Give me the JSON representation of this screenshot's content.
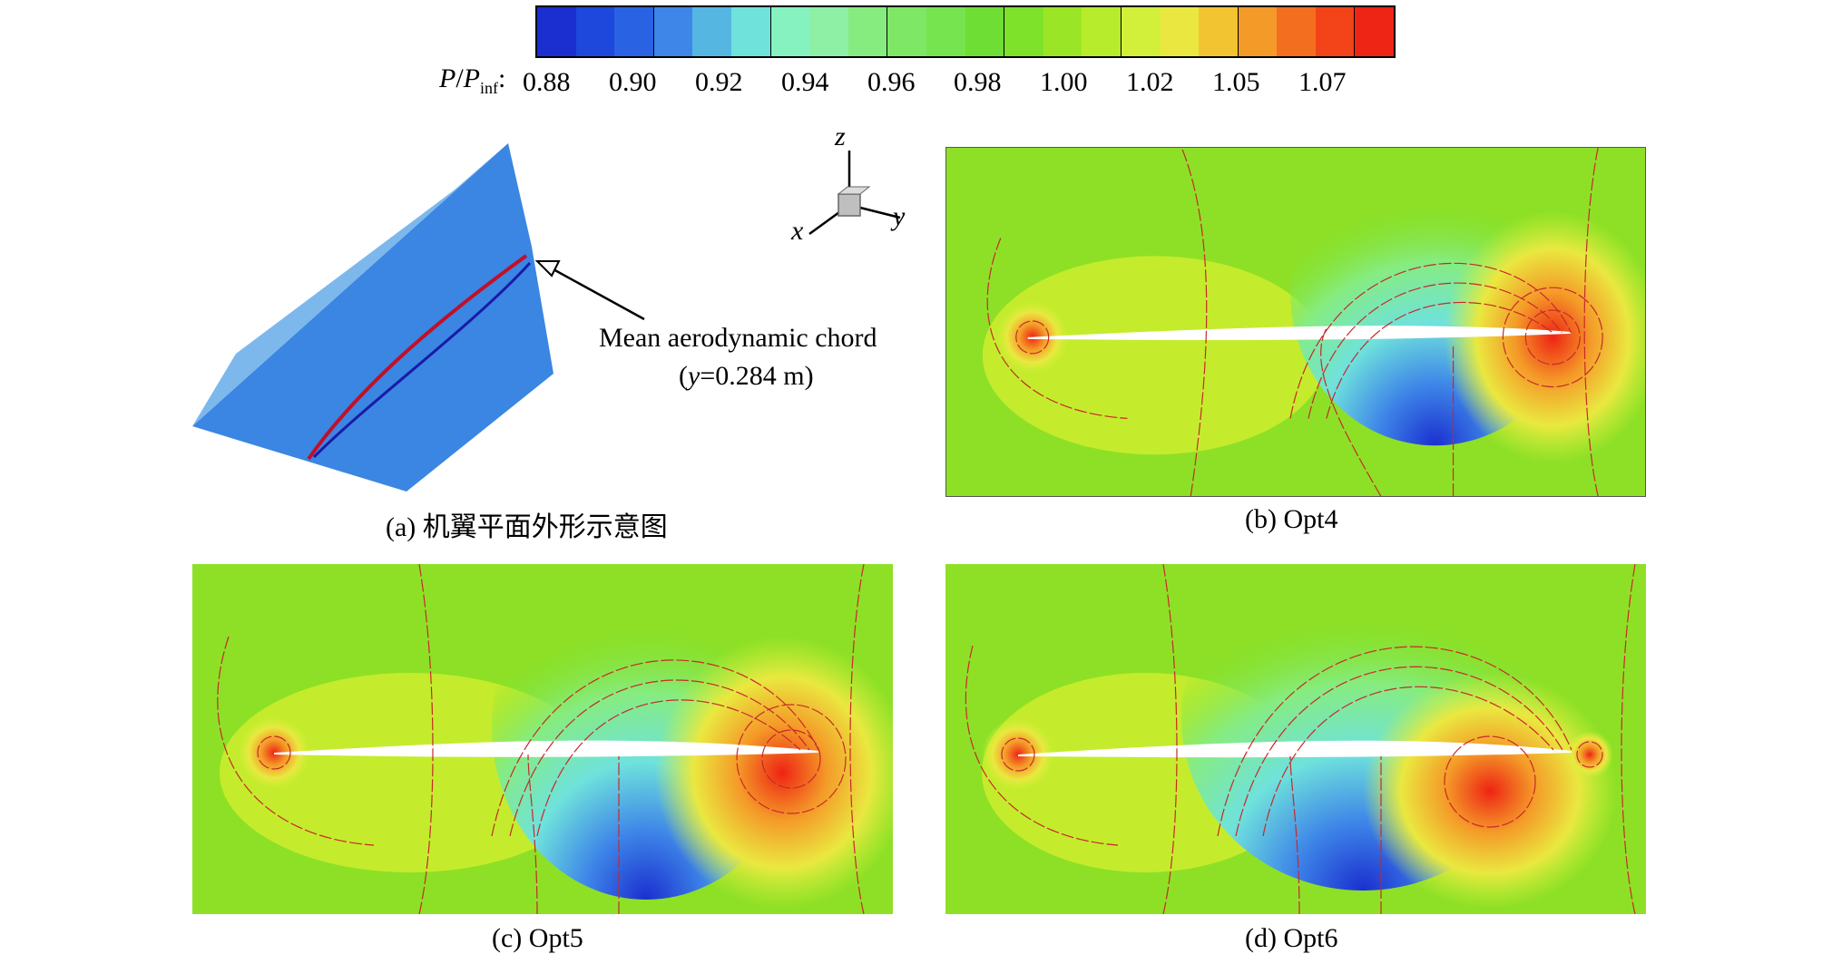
{
  "colorbar": {
    "label_main": "P",
    "label_slash": "/",
    "label_p2": "P",
    "label_sub": "inf",
    "label_colon": ":",
    "colors": [
      "#1b2fd0",
      "#1e48dc",
      "#2a62e4",
      "#3e86e8",
      "#55b6e2",
      "#6fe2dc",
      "#86f2c0",
      "#8ef0a4",
      "#86ec80",
      "#7ee866",
      "#76e44e",
      "#6ede34",
      "#7ee22a",
      "#9ae626",
      "#b6ec2c",
      "#d2f03a",
      "#eae840",
      "#f2c432",
      "#f49a28",
      "#f46e20",
      "#f24418",
      "#ee2414"
    ],
    "separators": [
      0,
      3,
      6,
      9,
      12,
      15,
      18,
      21
    ],
    "ticks": [
      "0.88",
      "0.90",
      "0.92",
      "0.94",
      "0.96",
      "0.98",
      "1.00",
      "1.02",
      "1.05",
      "1.07"
    ]
  },
  "axes": {
    "z": "z",
    "x": "x",
    "y": "y"
  },
  "annotation": {
    "line1": "Mean aerodynamic chord",
    "line2_pre": "(",
    "line2_var": "y",
    "line2_post": "=0.284 m)"
  },
  "captions": {
    "a": "(a) 机翼平面外形示意图",
    "b": "(b) Opt4",
    "c": "(c) Opt5",
    "d": "(d) Opt6"
  }
}
